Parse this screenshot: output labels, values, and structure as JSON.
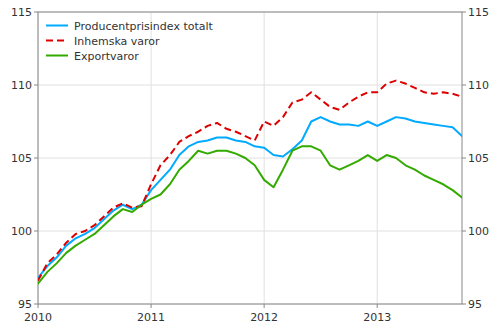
{
  "chart_data": {
    "type": "line",
    "x": [
      2010,
      2010.083333,
      2010.166667,
      2010.25,
      2010.333333,
      2010.416667,
      2010.5,
      2010.583333,
      2010.666667,
      2010.75,
      2010.833333,
      2010.916667,
      2011,
      2011.083333,
      2011.166667,
      2011.25,
      2011.333333,
      2011.416667,
      2011.5,
      2011.583333,
      2011.666667,
      2011.75,
      2011.833333,
      2011.916667,
      2012,
      2012.083333,
      2012.166667,
      2012.25,
      2012.333333,
      2012.416667,
      2012.5,
      2012.583333,
      2012.666667,
      2012.75,
      2012.833333,
      2012.916667,
      2013,
      2013.083333,
      2013.166667,
      2013.25,
      2013.333333,
      2013.416667,
      2013.5,
      2013.583333,
      2013.666667,
      2013.75
    ],
    "series": [
      {
        "name": "Producentprisindex totalt",
        "color": "#00aaff",
        "line_style": "solid",
        "values": [
          96.8,
          97.6,
          98.2,
          99.0,
          99.5,
          99.8,
          100.2,
          100.8,
          101.4,
          101.8,
          101.5,
          101.8,
          102.8,
          103.5,
          104.2,
          105.2,
          105.8,
          106.1,
          106.2,
          106.4,
          106.4,
          106.2,
          106.1,
          105.8,
          105.7,
          105.2,
          105.1,
          105.6,
          106.2,
          107.5,
          107.8,
          107.5,
          107.3,
          107.3,
          107.2,
          107.5,
          107.2,
          107.5,
          107.8,
          107.7,
          107.5,
          107.4,
          107.3,
          107.2,
          107.1,
          106.5
        ]
      },
      {
        "name": "Inhemska varor",
        "color": "#dd0000",
        "line_style": "dashed",
        "values": [
          96.6,
          97.8,
          98.4,
          99.2,
          99.8,
          100.0,
          100.4,
          101.0,
          101.6,
          101.9,
          101.6,
          101.7,
          103.2,
          104.5,
          105.2,
          106.1,
          106.5,
          106.8,
          107.2,
          107.4,
          107.0,
          106.8,
          106.5,
          106.2,
          107.5,
          107.2,
          107.8,
          108.8,
          109.0,
          109.5,
          109.0,
          108.5,
          108.3,
          108.8,
          109.2,
          109.5,
          109.5,
          110.1,
          110.3,
          110.1,
          109.8,
          109.5,
          109.4,
          109.5,
          109.4,
          109.2
        ]
      },
      {
        "name": "Exportvaror",
        "color": "#33aa00",
        "line_style": "solid",
        "values": [
          96.4,
          97.2,
          97.8,
          98.5,
          99.0,
          99.4,
          99.8,
          100.4,
          101.0,
          101.5,
          101.3,
          101.8,
          102.2,
          102.5,
          103.2,
          104.2,
          104.8,
          105.5,
          105.3,
          105.5,
          105.5,
          105.3,
          105.0,
          104.5,
          103.5,
          103.0,
          104.2,
          105.5,
          105.8,
          105.8,
          105.5,
          104.5,
          104.2,
          104.5,
          104.8,
          105.2,
          104.8,
          105.2,
          105.0,
          104.5,
          104.2,
          103.8,
          103.5,
          103.2,
          102.8,
          102.3
        ]
      }
    ],
    "xlim": [
      2010,
      2013.75
    ],
    "xticks": [
      2010,
      2011,
      2012,
      2013
    ],
    "ylim": [
      95,
      115
    ],
    "yticks": [
      95,
      100,
      105,
      110,
      115
    ],
    "y2lim": [
      95,
      115
    ],
    "y2ticks": [
      95,
      100,
      105,
      110,
      115
    ],
    "grid": true,
    "legend": "upper left"
  }
}
